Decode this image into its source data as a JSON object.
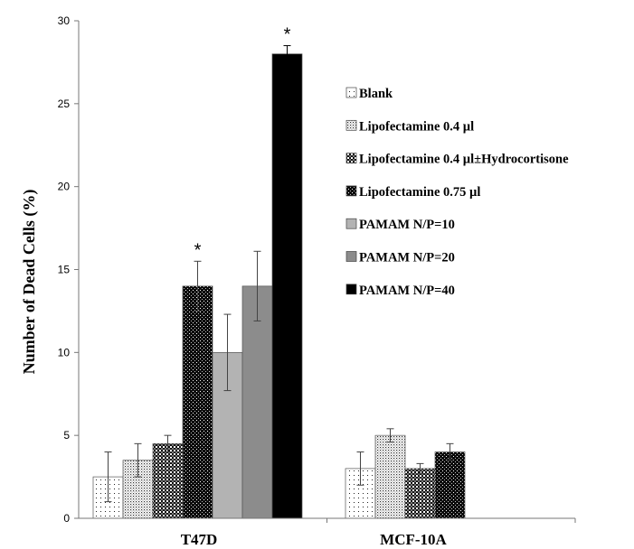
{
  "chart_data": {
    "type": "bar",
    "title": "",
    "xlabel": "",
    "ylabel": "Number of Dead Cells (%)",
    "ylim": [
      0,
      30
    ],
    "yticks": [
      0,
      5,
      10,
      15,
      20,
      25,
      30
    ],
    "grid": false,
    "legend_position": "right",
    "categories": [
      "T47D",
      "MCF-10A"
    ],
    "series": [
      {
        "name": "Blank",
        "pattern": "sparse-dots",
        "values": [
          2.5,
          3.0
        ],
        "errors": [
          1.5,
          1.0
        ],
        "significance": [
          "",
          ""
        ]
      },
      {
        "name": "Lipofectamine 0.4 µl",
        "pattern": "fine-dots",
        "values": [
          3.5,
          5.0
        ],
        "errors": [
          1.0,
          0.4
        ],
        "significance": [
          "",
          ""
        ]
      },
      {
        "name": "Lipofectamine 0.4 µl±Hydrocortisone",
        "pattern": "checker",
        "values": [
          4.5,
          3.0
        ],
        "errors": [
          0.5,
          0.3
        ],
        "significance": [
          "",
          ""
        ]
      },
      {
        "name": "Lipofectamine 0.75 µl",
        "pattern": "dense-dark",
        "values": [
          14.0,
          4.0
        ],
        "errors": [
          1.5,
          0.5
        ],
        "significance": [
          "*",
          ""
        ]
      },
      {
        "name": "PAMAM N/P=10",
        "pattern": "solid",
        "color": "#b3b3b3",
        "values": [
          10.0,
          null
        ],
        "errors": [
          2.3,
          null
        ],
        "significance": [
          "",
          ""
        ]
      },
      {
        "name": "PAMAM N/P=20",
        "pattern": "solid",
        "color": "#8c8c8c",
        "values": [
          14.0,
          null
        ],
        "errors": [
          2.1,
          null
        ],
        "significance": [
          "",
          ""
        ]
      },
      {
        "name": "PAMAM N/P=40",
        "pattern": "solid",
        "color": "#000000",
        "values": [
          28.0,
          null
        ],
        "errors": [
          0.5,
          null
        ],
        "significance": [
          "*",
          ""
        ]
      }
    ]
  }
}
